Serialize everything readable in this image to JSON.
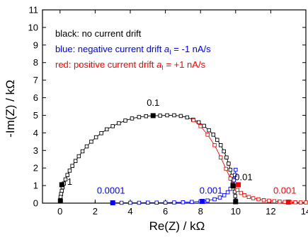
{
  "chart_data": {
    "type": "scatter",
    "xlabel": "Re(Z) / kΩ",
    "ylabel": "-Im(Z) / kΩ",
    "xlim": [
      -1,
      14
    ],
    "ylim": [
      0,
      11
    ],
    "xticks": [
      0,
      2,
      4,
      6,
      8,
      10,
      12,
      14
    ],
    "yticks": [
      0,
      1,
      2,
      3,
      4,
      5,
      6,
      7,
      8,
      9,
      10,
      11
    ],
    "grid": false,
    "legend": {
      "placement": "top-left",
      "entries": [
        {
          "text": "black: no current drift",
          "color": "#000000"
        },
        {
          "text_main": "blue: negative current drift ",
          "sym": "a",
          "sub": "I",
          "text_tail": " = -1 nA/s",
          "color": "#0000ff"
        },
        {
          "text_main": "red: positive current drift ",
          "sym": "a",
          "sub": "I",
          "text_tail": " = +1 nA/s",
          "color": "#ff0000"
        }
      ]
    },
    "series": [
      {
        "color": "#000000",
        "marker": "open-square",
        "x": [
          10.0,
          9.98,
          9.95,
          9.9,
          9.85,
          9.78,
          9.7,
          9.6,
          9.48,
          9.33,
          9.15,
          8.95,
          8.73,
          8.48,
          8.2,
          7.9,
          7.58,
          7.24,
          6.88,
          6.5,
          6.1,
          5.7,
          5.3,
          4.9,
          4.5,
          4.1,
          3.72,
          3.35,
          3.0,
          2.66,
          2.35,
          2.05,
          1.78,
          1.52,
          1.28,
          1.07,
          0.88,
          0.7,
          0.55,
          0.42,
          0.31,
          0.22,
          0.15,
          0.1,
          0.06,
          0.03,
          0.01
        ],
        "y": [
          0.15,
          0.4,
          0.65,
          0.95,
          1.25,
          1.55,
          1.9,
          2.25,
          2.6,
          2.95,
          3.3,
          3.6,
          3.9,
          4.15,
          4.4,
          4.6,
          4.75,
          4.88,
          4.96,
          5.0,
          5.0,
          4.98,
          4.98,
          4.95,
          4.9,
          4.82,
          4.7,
          4.55,
          4.38,
          4.2,
          3.98,
          3.75,
          3.5,
          3.23,
          2.95,
          2.67,
          2.4,
          2.12,
          1.85,
          1.6,
          1.35,
          1.12,
          0.9,
          0.7,
          0.52,
          0.35,
          0.18
        ]
      },
      {
        "color": "#0000ff",
        "marker": "open-square",
        "x": [
          3.0,
          3.5,
          4.0,
          4.5,
          5.0,
          5.5,
          6.0,
          6.5,
          7.0,
          7.5,
          8.0,
          8.4,
          8.8,
          9.1,
          9.35,
          9.55,
          9.7,
          9.82,
          9.9,
          9.96,
          10.0
        ],
        "y": [
          0.02,
          0.02,
          0.02,
          0.02,
          0.03,
          0.03,
          0.03,
          0.04,
          0.05,
          0.07,
          0.1,
          0.15,
          0.22,
          0.32,
          0.45,
          0.62,
          0.82,
          1.05,
          1.3,
          1.6,
          1.9
        ]
      },
      {
        "color": "#ff0000",
        "marker": "open-square",
        "x": [
          7.6,
          8.0,
          8.4,
          8.8,
          9.15,
          9.45,
          9.7,
          9.9,
          10.1,
          10.3,
          10.5,
          10.75,
          11.0,
          11.3,
          11.6,
          11.9,
          12.2,
          12.5,
          12.8,
          13.1,
          13.4,
          13.7,
          14.0
        ],
        "y": [
          4.72,
          4.38,
          3.9,
          3.3,
          2.6,
          1.95,
          1.4,
          1.0,
          0.75,
          0.58,
          0.45,
          0.35,
          0.28,
          0.22,
          0.17,
          0.14,
          0.11,
          0.09,
          0.07,
          0.06,
          0.05,
          0.04,
          0.04
        ]
      }
    ],
    "markers": [
      {
        "x": 5.3,
        "y": 4.98,
        "color": "#000000"
      },
      {
        "x": 0.1,
        "y": 1.05,
        "color": "#000000"
      },
      {
        "x": 0.02,
        "y": 0.12,
        "color": "#000000"
      },
      {
        "x": 9.85,
        "y": 0.98,
        "color": "#000000"
      },
      {
        "x": 10.0,
        "y": 0.08,
        "color": "#000000"
      },
      {
        "x": 3.0,
        "y": 0.02,
        "color": "#0000ff"
      },
      {
        "x": 8.1,
        "y": 0.1,
        "color": "#0000ff"
      },
      {
        "x": 10.15,
        "y": 1.05,
        "color": "#ff0000"
      },
      {
        "x": 13.0,
        "y": 0.06,
        "color": "#ff0000"
      }
    ],
    "annotations": [
      {
        "text": "0.1",
        "x": 5.3,
        "y": 5.55,
        "color": "#000000"
      },
      {
        "text": "1",
        "x": 0.55,
        "y": 1.05,
        "color": "#000000"
      },
      {
        "text": "0.01",
        "x": 10.45,
        "y": 1.3,
        "color": "#000000"
      },
      {
        "text": "0.0001",
        "x": 2.9,
        "y": 0.55,
        "color": "#0000ff"
      },
      {
        "text": "0.001",
        "x": 8.6,
        "y": 0.55,
        "color": "#0000ff"
      },
      {
        "text": "0.001",
        "x": 12.8,
        "y": 0.55,
        "color": "#ff0000"
      }
    ]
  }
}
